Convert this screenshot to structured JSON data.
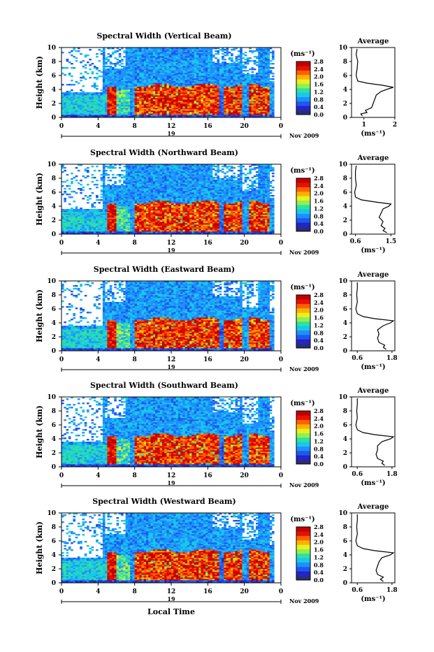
{
  "xlabel": "Local Time",
  "colorbar": {
    "unit": "(ms⁻¹)",
    "ticks": [
      "0.0",
      "0.4",
      "0.8",
      "1.2",
      "1.6",
      "2.0",
      "2.4",
      "2.8"
    ],
    "range": [
      0,
      2.8
    ],
    "colors": [
      "#2c2c7a",
      "#2424c8",
      "#1e58f0",
      "#1e90ff",
      "#18c8e8",
      "#30e0a0",
      "#90f050",
      "#e8f020",
      "#ffb000",
      "#ff6000",
      "#e81000",
      "#c00000"
    ]
  },
  "chart_data": [
    {
      "type": "heatmap",
      "title": "Spectral Width (Vertical Beam)",
      "xlabel": "",
      "ylabel": "Height (km)",
      "x_ticks": [
        "0",
        "4",
        "8",
        "12",
        "16",
        "20",
        "0"
      ],
      "xlim": [
        0,
        24
      ],
      "y_ticks": [
        "0",
        "2",
        "4",
        "6",
        "8",
        "10"
      ],
      "ylim": [
        0,
        10
      ],
      "date_day": "19",
      "date_month_year": "Nov 2009",
      "average_profile": {
        "title": "Average",
        "x_ticks": [
          "1",
          "2"
        ],
        "xlim": [
          0.6,
          2.0
        ],
        "xlabel": "(ms⁻¹)",
        "y_ticks": [
          "0",
          "2",
          "4",
          "6",
          "8",
          "10"
        ],
        "ylim": [
          0,
          10
        ],
        "points": [
          [
            0.95,
            0.2
          ],
          [
            0.9,
            0.5
          ],
          [
            1.1,
            0.7
          ],
          [
            1.05,
            1.0
          ],
          [
            1.25,
            1.4
          ],
          [
            1.3,
            2.0
          ],
          [
            1.35,
            2.6
          ],
          [
            1.4,
            3.2
          ],
          [
            1.55,
            3.7
          ],
          [
            1.8,
            4.1
          ],
          [
            1.95,
            4.3
          ],
          [
            1.6,
            4.6
          ],
          [
            1.1,
            4.9
          ],
          [
            0.8,
            5.2
          ],
          [
            0.75,
            6.0
          ],
          [
            0.78,
            7.0
          ],
          [
            0.8,
            8.0
          ],
          [
            0.75,
            9.0
          ],
          [
            0.78,
            9.8
          ]
        ]
      }
    },
    {
      "type": "heatmap",
      "title": "Spectral Width (Northward Beam)",
      "xlabel": "",
      "ylabel": "Height (km)",
      "x_ticks": [
        "0",
        "4",
        "8",
        "12",
        "16",
        "20",
        "0"
      ],
      "xlim": [
        0,
        24
      ],
      "y_ticks": [
        "0",
        "2",
        "4",
        "6",
        "8",
        "10"
      ],
      "ylim": [
        0,
        10
      ],
      "date_day": "19",
      "date_month_year": "Nov 2009",
      "average_profile": {
        "title": "Average",
        "x_ticks": [
          "0.6",
          "1.5"
        ],
        "xlim": [
          0.5,
          1.6
        ],
        "xlabel": "(ms⁻¹)",
        "y_ticks": [
          "0",
          "2",
          "4",
          "6",
          "8",
          "10"
        ],
        "ylim": [
          0,
          10
        ],
        "points": [
          [
            1.4,
            0.2
          ],
          [
            1.3,
            0.5
          ],
          [
            1.35,
            0.8
          ],
          [
            1.25,
            1.2
          ],
          [
            1.3,
            1.8
          ],
          [
            1.2,
            2.4
          ],
          [
            1.25,
            3.0
          ],
          [
            1.3,
            3.6
          ],
          [
            1.45,
            4.0
          ],
          [
            1.5,
            4.3
          ],
          [
            1.1,
            4.6
          ],
          [
            0.75,
            4.9
          ],
          [
            0.6,
            5.3
          ],
          [
            0.58,
            6.0
          ],
          [
            0.62,
            7.0
          ],
          [
            0.6,
            8.0
          ],
          [
            0.6,
            9.0
          ],
          [
            0.62,
            9.8
          ]
        ]
      }
    },
    {
      "type": "heatmap",
      "title": "Spectral Width (Eastward Beam)",
      "xlabel": "",
      "ylabel": "Height (km)",
      "x_ticks": [
        "0",
        "4",
        "8",
        "12",
        "16",
        "20",
        "0"
      ],
      "xlim": [
        0,
        24
      ],
      "y_ticks": [
        "0",
        "2",
        "4",
        "6",
        "8",
        "10"
      ],
      "ylim": [
        0,
        10
      ],
      "date_day": "19",
      "date_month_year": "Nov 2009",
      "average_profile": {
        "title": "Average",
        "x_ticks": [
          "0.6",
          "1.8"
        ],
        "xlim": [
          0.4,
          1.9
        ],
        "xlabel": "(ms⁻¹)",
        "y_ticks": [
          "0",
          "2",
          "4",
          "6",
          "8",
          "10"
        ],
        "ylim": [
          0,
          10
        ],
        "points": [
          [
            1.6,
            0.2
          ],
          [
            1.5,
            0.5
          ],
          [
            1.55,
            0.8
          ],
          [
            1.35,
            1.2
          ],
          [
            1.3,
            1.8
          ],
          [
            1.35,
            2.4
          ],
          [
            1.3,
            3.0
          ],
          [
            1.5,
            3.6
          ],
          [
            1.75,
            4.0
          ],
          [
            1.85,
            4.3
          ],
          [
            1.2,
            4.6
          ],
          [
            0.8,
            4.9
          ],
          [
            0.6,
            5.3
          ],
          [
            0.55,
            6.0
          ],
          [
            0.6,
            7.0
          ],
          [
            0.58,
            8.0
          ],
          [
            0.6,
            9.0
          ],
          [
            0.6,
            9.8
          ]
        ]
      }
    },
    {
      "type": "heatmap",
      "title": "Spectral Width (Southward Beam)",
      "xlabel": "",
      "ylabel": "Height (km)",
      "x_ticks": [
        "0",
        "4",
        "8",
        "12",
        "16",
        "20",
        "0"
      ],
      "xlim": [
        0,
        24
      ],
      "y_ticks": [
        "0",
        "2",
        "4",
        "6",
        "8",
        "10"
      ],
      "ylim": [
        0,
        10
      ],
      "date_day": "19",
      "date_month_year": "Nov 2009",
      "average_profile": {
        "title": "Average",
        "x_ticks": [
          "0.6",
          "1.8"
        ],
        "xlim": [
          0.4,
          1.9
        ],
        "xlabel": "(ms⁻¹)",
        "y_ticks": [
          "0",
          "2",
          "4",
          "6",
          "8",
          "10"
        ],
        "ylim": [
          0,
          10
        ],
        "points": [
          [
            1.55,
            0.2
          ],
          [
            1.45,
            0.5
          ],
          [
            1.5,
            0.8
          ],
          [
            1.3,
            1.2
          ],
          [
            1.25,
            1.8
          ],
          [
            1.3,
            2.4
          ],
          [
            1.3,
            3.0
          ],
          [
            1.45,
            3.6
          ],
          [
            1.75,
            4.0
          ],
          [
            1.85,
            4.3
          ],
          [
            1.2,
            4.6
          ],
          [
            0.8,
            4.9
          ],
          [
            0.6,
            5.3
          ],
          [
            0.55,
            6.0
          ],
          [
            0.6,
            7.0
          ],
          [
            0.58,
            8.0
          ],
          [
            0.6,
            9.0
          ],
          [
            0.6,
            9.8
          ]
        ]
      }
    },
    {
      "type": "heatmap",
      "title": "Spectral Width (Westward Beam)",
      "xlabel": "Local Time",
      "ylabel": "Height (km)",
      "x_ticks": [
        "0",
        "4",
        "8",
        "12",
        "16",
        "20",
        "0"
      ],
      "xlim": [
        0,
        24
      ],
      "y_ticks": [
        "0",
        "2",
        "4",
        "6",
        "8",
        "10"
      ],
      "ylim": [
        0,
        10
      ],
      "date_day": "19",
      "date_month_year": "Nov 2009",
      "average_profile": {
        "title": "Average",
        "x_ticks": [
          "0.6",
          "1.8"
        ],
        "xlim": [
          0.4,
          1.9
        ],
        "xlabel": "(ms⁻¹)",
        "y_ticks": [
          "0",
          "2",
          "4",
          "6",
          "8",
          "10"
        ],
        "ylim": [
          0,
          10
        ],
        "points": [
          [
            1.5,
            0.2
          ],
          [
            1.4,
            0.5
          ],
          [
            1.5,
            0.8
          ],
          [
            1.3,
            1.2
          ],
          [
            1.25,
            1.8
          ],
          [
            1.3,
            2.4
          ],
          [
            1.35,
            3.0
          ],
          [
            1.45,
            3.6
          ],
          [
            1.75,
            4.0
          ],
          [
            1.85,
            4.3
          ],
          [
            1.2,
            4.6
          ],
          [
            0.8,
            4.9
          ],
          [
            0.6,
            5.3
          ],
          [
            0.55,
            6.0
          ],
          [
            0.6,
            7.0
          ],
          [
            0.58,
            8.0
          ],
          [
            0.6,
            9.0
          ],
          [
            0.6,
            9.8
          ]
        ]
      }
    }
  ]
}
